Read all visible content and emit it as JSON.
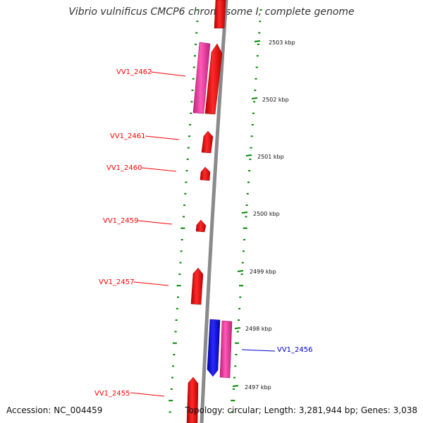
{
  "title": "Vibrio vulnificus CMCP6 chromosome I, complete genome",
  "accession": "Accession: NC_004459",
  "topology": "Topology: circular; Length: 3,281,944 bp; Genes: 3,038",
  "colors": {
    "forward_gene": "#ff0000",
    "reverse_gene": "#0000ff",
    "feature_magenta": "#ff33aa",
    "backbone": "#888888",
    "ticks": "#008800"
  },
  "scale_ticks": [
    "2503 kbp",
    "2502 kbp",
    "2501 kbp",
    "2500 kbp",
    "2499 kbp",
    "2498 kbp",
    "2497 kbp"
  ],
  "gene_labels": [
    {
      "text": "VV1_2462",
      "strand": "forward"
    },
    {
      "text": "VV1_2461",
      "strand": "forward"
    },
    {
      "text": "VV1_2460",
      "strand": "forward"
    },
    {
      "text": "VV1_2459",
      "strand": "forward"
    },
    {
      "text": "VV1_2457",
      "strand": "forward"
    },
    {
      "text": "VV1_2456",
      "strand": "reverse"
    },
    {
      "text": "VV1_2455",
      "strand": "forward"
    }
  ]
}
